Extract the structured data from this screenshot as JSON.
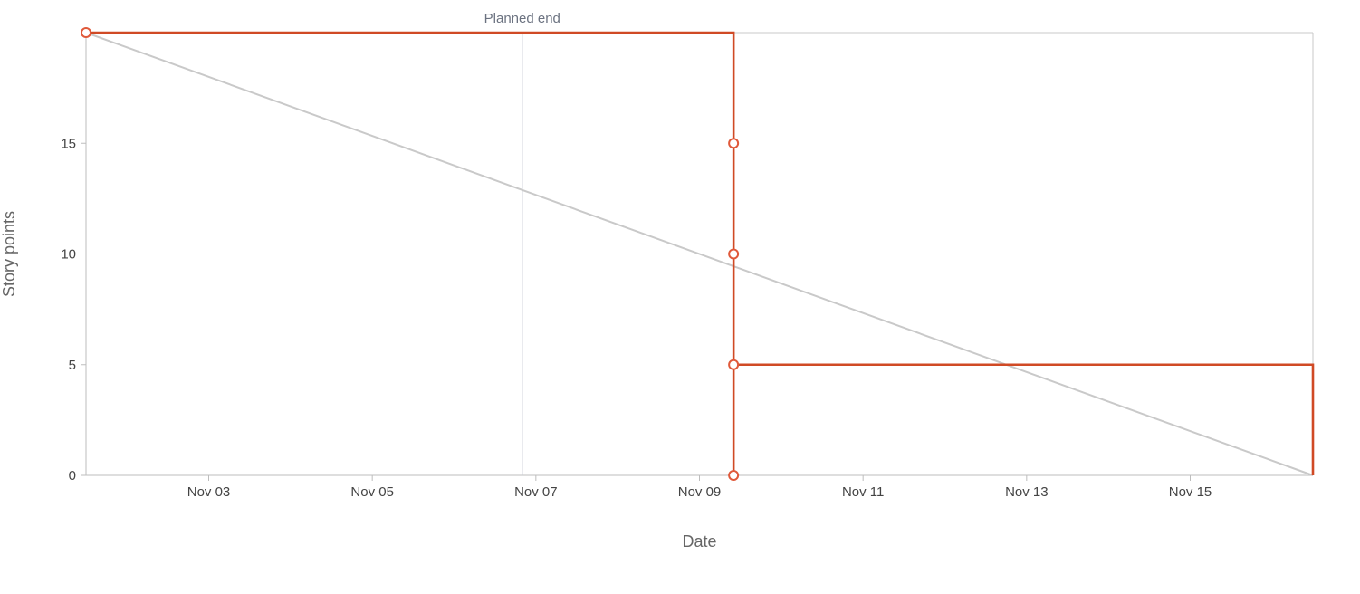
{
  "chart_data": {
    "type": "line",
    "title": "",
    "xlabel": "Date",
    "ylabel": "Story points",
    "x_range": [
      "2024-11-01T12:00",
      "2024-11-16T12:00"
    ],
    "ylim": [
      0,
      20
    ],
    "x_ticks": [
      {
        "date": "2024-11-03",
        "label": "Nov 03"
      },
      {
        "date": "2024-11-05",
        "label": "Nov 05"
      },
      {
        "date": "2024-11-07",
        "label": "Nov 07"
      },
      {
        "date": "2024-11-09",
        "label": "Nov 09"
      },
      {
        "date": "2024-11-11",
        "label": "Nov 11"
      },
      {
        "date": "2024-11-13",
        "label": "Nov 13"
      },
      {
        "date": "2024-11-15",
        "label": "Nov 15"
      }
    ],
    "y_ticks": [
      0,
      5,
      10,
      15
    ],
    "grid": false,
    "annotations": [
      {
        "label": "Planned end",
        "x": "2024-11-06T20:00"
      }
    ],
    "series": [
      {
        "color": "#c9c9c9",
        "points": [
          {
            "x": "2024-11-01T12:00",
            "y": 20
          },
          {
            "x": "2024-11-16T12:00",
            "y": 0
          }
        ]
      },
      {
        "color": "#d04a25",
        "step": true,
        "markers": [
          true,
          true,
          true,
          true,
          true,
          false,
          false
        ],
        "points": [
          {
            "x": "2024-11-01T12:00",
            "y": 20
          },
          {
            "x": "2024-11-09T10:00",
            "y": 15
          },
          {
            "x": "2024-11-09T10:00",
            "y": 10
          },
          {
            "x": "2024-11-09T10:00",
            "y": 0
          },
          {
            "x": "2024-11-09T10:00",
            "y": 5
          },
          {
            "x": "2024-11-16T12:00",
            "y": 5
          },
          {
            "x": "2024-11-16T12:00",
            "y": 0
          }
        ]
      }
    ]
  }
}
